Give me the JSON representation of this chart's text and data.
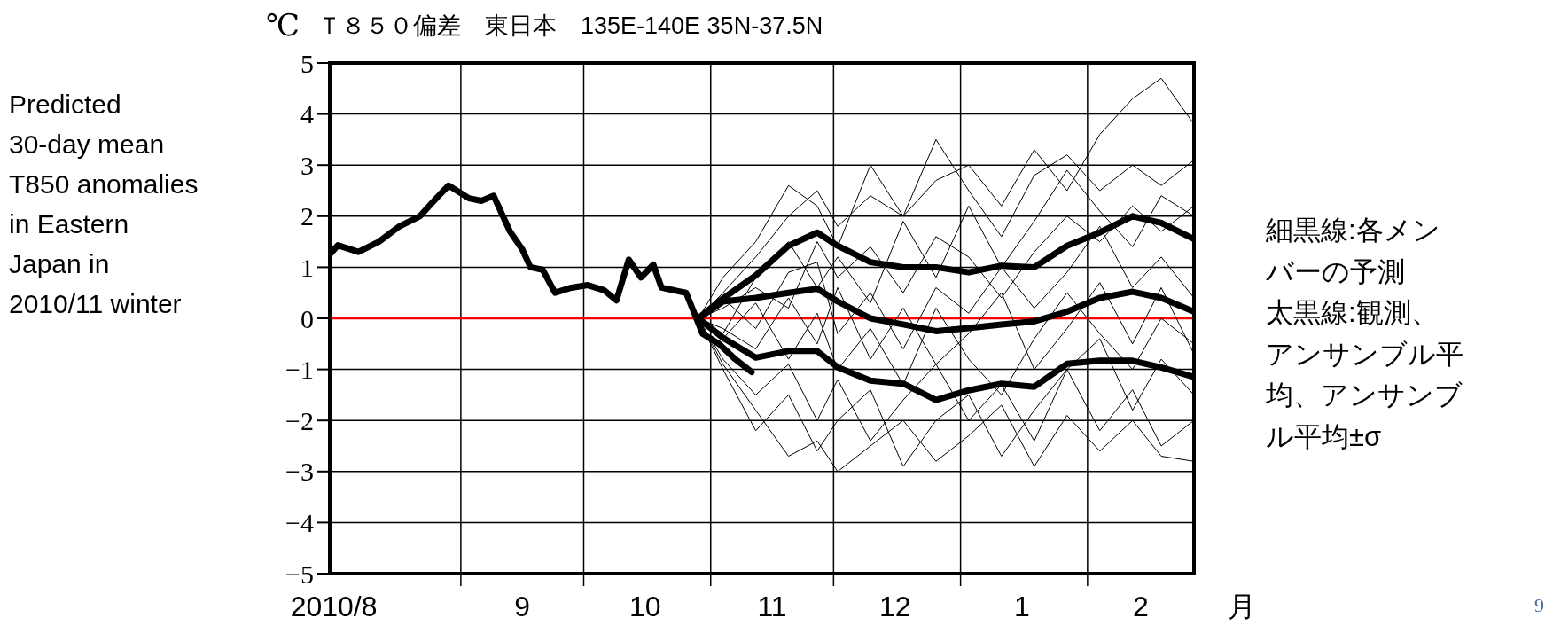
{
  "chart_data": {
    "type": "line",
    "title": "Ｔ８５０偏差　東日本　135E-140E 35N-37.5N",
    "ylabel": "℃",
    "xlabel": "月",
    "xlim": [
      "2010-07-31",
      "2011-02-27"
    ],
    "xticks": [
      {
        "value": "2010-08-01",
        "label": "2010/8"
      },
      {
        "value": "2010-09-01",
        "label": null
      },
      {
        "value": "2010-09-16",
        "label": "9"
      },
      {
        "value": "2010-10-01",
        "label": null
      },
      {
        "value": "2010-10-16",
        "label": "10"
      },
      {
        "value": "2010-11-01",
        "label": null
      },
      {
        "value": "2010-11-16",
        "label": "11"
      },
      {
        "value": "2010-12-01",
        "label": null
      },
      {
        "value": "2010-12-16",
        "label": "12"
      },
      {
        "value": "2011-01-01",
        "label": null
      },
      {
        "value": "2011-01-16",
        "label": "1"
      },
      {
        "value": "2011-02-01",
        "label": null
      },
      {
        "value": "2011-02-14",
        "label": "2"
      }
    ],
    "ylim": [
      -5,
      5
    ],
    "yticks": [
      -5,
      -4,
      -3,
      -2,
      -1,
      0,
      1,
      2,
      3,
      4,
      5
    ],
    "grid": true,
    "marker": "none",
    "line_style": "solid",
    "ref_lines": [
      {
        "axis": "y",
        "value": 0,
        "color": "#ff0000"
      }
    ],
    "annotations": [
      "Predicted 30-day mean T850 anomalies in Eastern Japan in 2010/11 winter",
      "細黒線:各メンバーの予測",
      "太黒線:観測、アンサンブル平均、アンサンブル平均±σ",
      "9"
    ],
    "series": [
      {
        "color": "#000000",
        "x": [
          "2010-10-29",
          "2010-11-04",
          "2010-11-12",
          "2010-11-20",
          "2010-11-27",
          "2010-12-02",
          "2010-12-10",
          "2010-12-18",
          "2010-12-26",
          "2011-01-03",
          "2011-01-11",
          "2011-01-19",
          "2011-01-27",
          "2011-02-04",
          "2011-02-12",
          "2011-02-19",
          "2011-02-27"
        ],
        "values": [
          0,
          0.5,
          1.2,
          2.0,
          2.5,
          1.8,
          2.4,
          2.0,
          2.7,
          3.0,
          2.2,
          3.3,
          2.5,
          3.6,
          4.3,
          4.7,
          3.8
        ]
      },
      {
        "color": "#000000",
        "x": [
          "2010-10-29",
          "2010-11-04",
          "2010-11-12",
          "2010-11-20",
          "2010-11-27",
          "2010-12-02",
          "2010-12-10",
          "2010-12-18",
          "2010-12-26",
          "2011-01-03",
          "2011-01-11",
          "2011-01-19",
          "2011-01-27",
          "2011-02-04",
          "2011-02-12",
          "2011-02-19",
          "2011-02-27"
        ],
        "values": [
          0,
          0.8,
          1.5,
          2.6,
          2.2,
          1.4,
          3.0,
          2.0,
          3.5,
          2.5,
          1.6,
          2.8,
          3.2,
          2.5,
          3.0,
          2.6,
          3.1
        ]
      },
      {
        "color": "#000000",
        "x": [
          "2010-10-29",
          "2010-11-04",
          "2010-11-12",
          "2010-11-20",
          "2010-11-27",
          "2010-12-02",
          "2010-12-10",
          "2010-12-18",
          "2010-12-26",
          "2011-01-03",
          "2011-01-11",
          "2011-01-19",
          "2011-01-27",
          "2011-02-04",
          "2011-02-12",
          "2011-02-19",
          "2011-02-27"
        ],
        "values": [
          0,
          -0.3,
          0.8,
          1.5,
          0.6,
          1.2,
          0.3,
          1.9,
          0.8,
          2.2,
          1.0,
          1.9,
          2.9,
          2.1,
          1.4,
          2.4,
          2.0
        ]
      },
      {
        "color": "#000000",
        "x": [
          "2010-10-29",
          "2010-11-04",
          "2010-11-12",
          "2010-11-20",
          "2010-11-27",
          "2010-12-02",
          "2010-12-10",
          "2010-12-18",
          "2010-12-26",
          "2011-01-03",
          "2011-01-11",
          "2011-01-19",
          "2011-01-27",
          "2011-02-04",
          "2011-02-12",
          "2011-02-19",
          "2011-02-27"
        ],
        "values": [
          0,
          0.4,
          -0.2,
          0.9,
          1.1,
          -0.3,
          0.5,
          -0.6,
          0.6,
          0.1,
          1.0,
          0.2,
          0.9,
          1.8,
          0.6,
          1.2,
          0.4
        ]
      },
      {
        "color": "#000000",
        "x": [
          "2010-10-29",
          "2010-11-04",
          "2010-11-12",
          "2010-11-20",
          "2010-11-27",
          "2010-12-02",
          "2010-12-10",
          "2010-12-18",
          "2010-12-26",
          "2011-01-03",
          "2011-01-11",
          "2011-01-19",
          "2011-01-27",
          "2011-02-04",
          "2011-02-12",
          "2011-02-19",
          "2011-02-27"
        ],
        "values": [
          0,
          -0.4,
          0.3,
          -0.8,
          0.1,
          -1.0,
          -0.2,
          -1.3,
          0.2,
          -0.8,
          -1.5,
          -0.4,
          0.5,
          -0.3,
          -1.0,
          0.0,
          -0.5
        ]
      },
      {
        "color": "#000000",
        "x": [
          "2010-10-29",
          "2010-11-04",
          "2010-11-12",
          "2010-11-20",
          "2010-11-27",
          "2010-12-02",
          "2010-12-10",
          "2010-12-18",
          "2010-12-26",
          "2011-01-03",
          "2011-01-11",
          "2011-01-19",
          "2011-01-27",
          "2011-02-04",
          "2011-02-12",
          "2011-02-19",
          "2011-02-27"
        ],
        "values": [
          0,
          -0.8,
          -1.5,
          -0.9,
          -2.0,
          -1.2,
          -2.4,
          -1.6,
          -0.9,
          -2.0,
          -1.3,
          -2.4,
          -1.0,
          -0.4,
          -1.8,
          -0.8,
          -1.5
        ]
      },
      {
        "color": "#000000",
        "x": [
          "2010-10-29",
          "2010-11-04",
          "2010-11-12",
          "2010-11-20",
          "2010-11-27",
          "2010-12-02",
          "2010-12-10",
          "2010-12-18",
          "2010-12-26",
          "2011-01-03",
          "2011-01-11",
          "2011-01-19",
          "2011-01-27",
          "2011-02-04",
          "2011-02-12",
          "2011-02-19",
          "2011-02-27"
        ],
        "values": [
          0,
          -1.0,
          -2.2,
          -1.5,
          -2.6,
          -2.0,
          -1.4,
          -2.9,
          -2.0,
          -1.5,
          -2.7,
          -1.8,
          -1.0,
          -2.2,
          -1.4,
          -2.5,
          -2.0
        ]
      },
      {
        "color": "#000000",
        "x": [
          "2010-10-29",
          "2010-11-04",
          "2010-11-12",
          "2010-11-20",
          "2010-11-27",
          "2010-12-02",
          "2010-12-10",
          "2010-12-18",
          "2010-12-26",
          "2011-01-03",
          "2011-01-11",
          "2011-01-19",
          "2011-01-27",
          "2011-02-04",
          "2011-02-12",
          "2011-02-19",
          "2011-02-27"
        ],
        "values": [
          0,
          -0.9,
          -1.8,
          -2.7,
          -2.4,
          -3.0,
          -2.5,
          -2.0,
          -2.8,
          -2.3,
          -1.7,
          -2.9,
          -1.9,
          -2.6,
          -2.0,
          -2.7,
          -2.8
        ]
      },
      {
        "color": "#000000",
        "x": [
          "2010-10-29",
          "2010-11-04",
          "2010-11-12",
          "2010-11-20",
          "2010-11-27",
          "2010-12-02",
          "2010-12-10",
          "2010-12-18",
          "2010-12-26",
          "2011-01-03",
          "2011-01-11",
          "2011-01-19",
          "2011-01-27",
          "2011-02-04",
          "2011-02-12",
          "2011-02-19",
          "2011-02-27"
        ],
        "values": [
          0,
          0.2,
          0.6,
          0.2,
          1.5,
          0.8,
          1.4,
          0.5,
          1.6,
          1.2,
          0.4,
          1.3,
          2.0,
          1.5,
          2.2,
          1.7,
          2.2
        ]
      },
      {
        "color": "#000000",
        "x": [
          "2010-10-29",
          "2010-11-04",
          "2010-11-12",
          "2010-11-20",
          "2010-11-27",
          "2010-12-02",
          "2010-12-10",
          "2010-12-18",
          "2010-12-26",
          "2011-01-03",
          "2011-01-11",
          "2011-01-19",
          "2011-01-27",
          "2011-02-04",
          "2011-02-12",
          "2011-02-19",
          "2011-02-27"
        ],
        "values": [
          0,
          -0.2,
          -0.6,
          0.4,
          -0.5,
          0.6,
          -0.8,
          0.2,
          -0.9,
          -0.3,
          0.5,
          -1.0,
          -0.2,
          0.7,
          -0.5,
          0.6,
          -0.7
        ]
      },
      {
        "color": "#000000",
        "x": [
          "2010-07-31",
          "2010-08-02",
          "2010-08-07",
          "2010-08-12",
          "2010-08-17",
          "2010-08-22",
          "2010-08-26",
          "2010-08-29",
          "2010-09-03",
          "2010-09-06",
          "2010-09-09",
          "2010-09-13",
          "2010-09-16",
          "2010-09-18",
          "2010-09-21",
          "2010-09-24",
          "2010-09-28",
          "2010-10-02",
          "2010-10-06",
          "2010-10-09",
          "2010-10-12",
          "2010-10-15",
          "2010-10-18",
          "2010-10-20",
          "2010-10-26",
          "2010-10-28",
          "2010-10-30",
          "2010-11-03",
          "2010-11-07",
          "2010-11-11"
        ],
        "values": [
          1.25,
          1.43,
          1.3,
          1.5,
          1.8,
          2.0,
          2.35,
          2.6,
          2.35,
          2.3,
          2.4,
          1.7,
          1.35,
          1.0,
          0.95,
          0.5,
          0.6,
          0.65,
          0.55,
          0.35,
          1.15,
          0.8,
          1.05,
          0.6,
          0.5,
          0.1,
          -0.3,
          -0.5,
          -0.8,
          -1.05
        ]
      },
      {
        "color": "#000000",
        "x": [
          "2010-10-29",
          "2010-11-04",
          "2010-11-12",
          "2010-11-20",
          "2010-11-27",
          "2010-12-02",
          "2010-12-10",
          "2010-12-18",
          "2010-12-26",
          "2011-01-03",
          "2011-01-11",
          "2011-01-19",
          "2011-01-27",
          "2011-02-04",
          "2011-02-12",
          "2011-02-19",
          "2011-02-27"
        ],
        "values": [
          0,
          0.33,
          0.4,
          0.5,
          0.58,
          0.33,
          0,
          -0.12,
          -0.25,
          -0.19,
          -0.12,
          -0.06,
          0.13,
          0.4,
          0.52,
          0.4,
          0.13
        ]
      },
      {
        "color": "#000000",
        "x": [
          "2010-10-29",
          "2010-11-04",
          "2010-11-12",
          "2010-11-20",
          "2010-11-27",
          "2010-12-02",
          "2010-12-10",
          "2010-12-18",
          "2010-12-26",
          "2011-01-03",
          "2011-01-11",
          "2011-01-19",
          "2011-01-27",
          "2011-02-04",
          "2011-02-12",
          "2011-02-19",
          "2011-02-27"
        ],
        "values": [
          0,
          0.39,
          0.84,
          1.42,
          1.68,
          1.42,
          1.1,
          1.0,
          1.0,
          0.9,
          1.03,
          1.0,
          1.42,
          1.68,
          2.0,
          1.87,
          1.55
        ]
      },
      {
        "color": "#000000",
        "x": [
          "2010-10-29",
          "2010-11-04",
          "2010-11-12",
          "2010-11-20",
          "2010-11-27",
          "2010-12-02",
          "2010-12-10",
          "2010-12-18",
          "2010-12-26",
          "2011-01-03",
          "2011-01-11",
          "2011-01-19",
          "2011-01-27",
          "2011-02-04",
          "2011-02-12",
          "2011-02-19",
          "2011-02-27"
        ],
        "values": [
          0,
          -0.38,
          -0.77,
          -0.64,
          -0.64,
          -0.96,
          -1.22,
          -1.28,
          -1.6,
          -1.41,
          -1.28,
          -1.34,
          -0.89,
          -0.83,
          -0.83,
          -0.96,
          -1.15
        ]
      }
    ]
  }
}
